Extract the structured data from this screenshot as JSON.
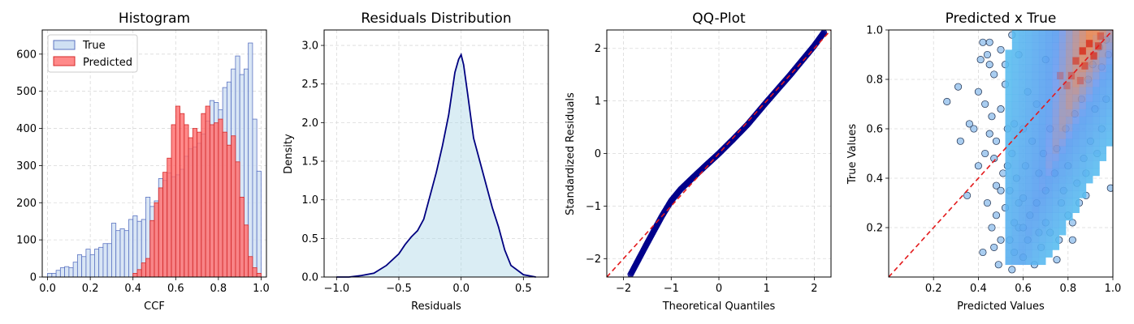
{
  "colors": {
    "true_fill": "#cfe0f3",
    "true_edge": "#5b73c2",
    "pred_fill": "#ff6b6b",
    "pred_edge": "#d42a2a",
    "kde_line": "#000080",
    "kde_fill": "#add8e6",
    "qq_points": "#00008b",
    "ref_line": "#e31a1c",
    "scatter_fill": "#a9cdf0",
    "scatter_edge": "#1a2b4a"
  },
  "chart_data": [
    {
      "type": "bar",
      "title": "Histogram",
      "xlabel": "CCF",
      "ylabel": "",
      "xlim": [
        -0.025,
        1.025
      ],
      "ylim": [
        0,
        665
      ],
      "xticks": [
        "0.0",
        "0.2",
        "0.4",
        "0.6",
        "0.8",
        "1.0"
      ],
      "yticks": [
        "0",
        "100",
        "200",
        "300",
        "400",
        "500",
        "600"
      ],
      "grid": true,
      "legend": "top-left",
      "bin_width": 0.02,
      "series": [
        {
          "name": "True",
          "bins_start": [
            0.0,
            0.02,
            0.04,
            0.06,
            0.08,
            0.1,
            0.12,
            0.14,
            0.16,
            0.18,
            0.2,
            0.22,
            0.24,
            0.26,
            0.28,
            0.3,
            0.32,
            0.34,
            0.36,
            0.38,
            0.4,
            0.42,
            0.44,
            0.46,
            0.48,
            0.5,
            0.52,
            0.54,
            0.56,
            0.58,
            0.6,
            0.62,
            0.64,
            0.66,
            0.68,
            0.7,
            0.72,
            0.74,
            0.76,
            0.78,
            0.8,
            0.82,
            0.84,
            0.86,
            0.88,
            0.9,
            0.92,
            0.94,
            0.96,
            0.98
          ],
          "values": [
            10,
            10,
            18,
            25,
            28,
            25,
            40,
            60,
            55,
            75,
            60,
            75,
            80,
            90,
            90,
            145,
            125,
            130,
            125,
            155,
            165,
            150,
            155,
            215,
            190,
            205,
            265,
            260,
            280,
            270,
            275,
            290,
            325,
            345,
            350,
            360,
            385,
            420,
            475,
            470,
            450,
            510,
            525,
            560,
            595,
            545,
            560,
            630,
            425,
            285
          ]
        },
        {
          "name": "Predicted",
          "bins_start": [
            0.4,
            0.42,
            0.44,
            0.46,
            0.48,
            0.5,
            0.52,
            0.54,
            0.56,
            0.58,
            0.6,
            0.62,
            0.64,
            0.66,
            0.68,
            0.7,
            0.72,
            0.74,
            0.76,
            0.78,
            0.8,
            0.82,
            0.84,
            0.86,
            0.88,
            0.9,
            0.92,
            0.94,
            0.96,
            0.98
          ],
          "values": [
            10,
            20,
            38,
            50,
            152,
            200,
            240,
            282,
            320,
            410,
            460,
            440,
            410,
            375,
            400,
            390,
            440,
            460,
            410,
            415,
            425,
            390,
            355,
            380,
            310,
            215,
            140,
            55,
            25,
            10
          ]
        }
      ]
    },
    {
      "type": "area",
      "title": "Residuals Distribution",
      "xlabel": "Residuals",
      "ylabel": "Density",
      "xlim": [
        -1.1,
        0.7
      ],
      "ylim": [
        0,
        3.2
      ],
      "xticks": [
        "−1.0",
        "−0.5",
        "0.0",
        "0.5"
      ],
      "yticks": [
        "0.0",
        "0.5",
        "1.0",
        "1.5",
        "2.0",
        "2.5",
        "3.0"
      ],
      "grid": true,
      "x": [
        -1.0,
        -0.9,
        -0.8,
        -0.7,
        -0.6,
        -0.5,
        -0.45,
        -0.4,
        -0.35,
        -0.3,
        -0.25,
        -0.2,
        -0.15,
        -0.1,
        -0.05,
        -0.02,
        0.0,
        0.02,
        0.05,
        0.1,
        0.15,
        0.2,
        0.25,
        0.3,
        0.35,
        0.4,
        0.5,
        0.6
      ],
      "values": [
        0.0,
        0.0,
        0.02,
        0.05,
        0.15,
        0.3,
        0.42,
        0.52,
        0.6,
        0.75,
        1.05,
        1.35,
        1.7,
        2.1,
        2.65,
        2.82,
        2.88,
        2.75,
        2.4,
        1.8,
        1.5,
        1.2,
        0.9,
        0.65,
        0.35,
        0.15,
        0.03,
        0.0
      ]
    },
    {
      "type": "scatter",
      "title": "QQ-Plot",
      "xlabel": "Theoretical Quantiles",
      "ylabel": "Standardized Residuals",
      "xlim": [
        -2.35,
        2.35
      ],
      "ylim": [
        -2.35,
        2.35
      ],
      "xticks": [
        "−2",
        "−1",
        "0",
        "1",
        "2"
      ],
      "yticks": [
        "−2",
        "−1",
        "0",
        "1",
        "2"
      ],
      "grid": true,
      "curve": {
        "x": [
          -1.85,
          -1.5,
          -1.2,
          -1.0,
          -0.8,
          -0.5,
          -0.3,
          0.0,
          0.3,
          0.6,
          1.0,
          1.5,
          2.0,
          2.2
        ],
        "y": [
          -2.3,
          -1.7,
          -1.2,
          -0.9,
          -0.68,
          -0.42,
          -0.25,
          0.0,
          0.27,
          0.55,
          0.98,
          1.5,
          2.05,
          2.3
        ]
      },
      "reference_line": {
        "x": [
          -2.35,
          2.35
        ],
        "y": [
          -2.35,
          2.35
        ]
      }
    },
    {
      "type": "scatter",
      "title": "Predicted x True",
      "xlabel": "Predicted Values",
      "ylabel": "True Values",
      "xlim": [
        0.0,
        1.0
      ],
      "ylim": [
        0.0,
        1.0
      ],
      "xticks": [
        "0.2",
        "0.4",
        "0.6",
        "0.8",
        "1.0"
      ],
      "yticks": [
        "0.2",
        "0.4",
        "0.6",
        "0.8",
        "1.0"
      ],
      "grid": true,
      "reference_line": {
        "x": [
          0.0,
          1.0
        ],
        "y": [
          0.0,
          1.0
        ]
      },
      "points": [
        [
          0.26,
          0.71
        ],
        [
          0.31,
          0.77
        ],
        [
          0.32,
          0.55
        ],
        [
          0.36,
          0.62
        ],
        [
          0.38,
          0.6
        ],
        [
          0.35,
          0.33
        ],
        [
          0.4,
          0.75
        ],
        [
          0.41,
          0.88
        ],
        [
          0.42,
          0.95
        ],
        [
          0.4,
          0.45
        ],
        [
          0.43,
          0.5
        ],
        [
          0.44,
          0.9
        ],
        [
          0.45,
          0.86
        ],
        [
          0.47,
          0.82
        ],
        [
          0.45,
          0.58
        ],
        [
          0.44,
          0.3
        ],
        [
          0.46,
          0.2
        ],
        [
          0.42,
          0.1
        ],
        [
          0.48,
          0.25
        ],
        [
          0.47,
          0.12
        ],
        [
          0.49,
          0.05
        ],
        [
          0.5,
          0.68
        ],
        [
          0.51,
          0.42
        ],
        [
          0.52,
          0.78
        ],
        [
          0.46,
          0.65
        ],
        [
          0.48,
          0.37
        ],
        [
          0.5,
          0.15
        ],
        [
          0.52,
          0.28
        ],
        [
          0.5,
          0.92
        ],
        [
          0.53,
          0.6
        ],
        [
          0.55,
          0.03
        ],
        [
          0.56,
          0.1
        ],
        [
          0.58,
          0.2
        ],
        [
          0.6,
          0.08
        ],
        [
          0.62,
          0.15
        ],
        [
          0.65,
          0.05
        ],
        [
          0.68,
          0.12
        ],
        [
          0.7,
          0.22
        ],
        [
          0.72,
          0.18
        ],
        [
          0.75,
          0.07
        ],
        [
          0.77,
          0.3
        ],
        [
          0.8,
          0.25
        ],
        [
          0.82,
          0.15
        ],
        [
          0.85,
          0.3
        ],
        [
          0.88,
          0.42
        ],
        [
          0.9,
          0.55
        ],
        [
          0.93,
          0.5
        ],
        [
          0.95,
          0.6
        ],
        [
          0.97,
          0.72
        ],
        [
          0.95,
          0.85
        ],
        [
          0.98,
          0.9
        ],
        [
          0.92,
          0.68
        ],
        [
          0.87,
          0.48
        ],
        [
          0.84,
          0.38
        ],
        [
          0.8,
          0.45
        ],
        [
          0.78,
          0.35
        ],
        [
          0.74,
          0.42
        ],
        [
          0.7,
          0.35
        ],
        [
          0.66,
          0.3
        ],
        [
          0.63,
          0.25
        ],
        [
          0.6,
          0.32
        ],
        [
          0.57,
          0.4
        ],
        [
          0.55,
          0.5
        ],
        [
          0.53,
          0.45
        ],
        [
          0.54,
          0.35
        ],
        [
          0.56,
          0.22
        ],
        [
          0.58,
          0.3
        ],
        [
          0.61,
          0.45
        ],
        [
          0.64,
          0.55
        ],
        [
          0.67,
          0.42
        ],
        [
          0.69,
          0.5
        ],
        [
          0.72,
          0.6
        ],
        [
          0.75,
          0.52
        ],
        [
          0.79,
          0.6
        ],
        [
          0.83,
          0.66
        ],
        [
          0.86,
          0.72
        ],
        [
          0.89,
          0.8
        ],
        [
          0.91,
          0.86
        ],
        [
          0.94,
          0.93
        ],
        [
          0.97,
          0.96
        ],
        [
          0.99,
          0.36
        ],
        [
          0.82,
          0.22
        ],
        [
          0.88,
          0.33
        ],
        [
          0.76,
          0.15
        ],
        [
          0.67,
          0.18
        ],
        [
          0.6,
          0.2
        ],
        [
          0.54,
          0.15
        ],
        [
          0.5,
          0.35
        ],
        [
          0.47,
          0.48
        ],
        [
          0.43,
          0.7
        ],
        [
          0.45,
          0.95
        ],
        [
          0.55,
          0.98
        ],
        [
          0.58,
          0.9
        ],
        [
          0.52,
          0.86
        ],
        [
          0.62,
          0.75
        ],
        [
          0.66,
          0.7
        ],
        [
          0.7,
          0.88
        ],
        [
          0.48,
          0.55
        ],
        [
          0.56,
          0.62
        ],
        [
          0.6,
          0.6
        ]
      ],
      "density_cells": [
        [
          0.85,
          0.9,
          1.0
        ],
        [
          0.88,
          0.93,
          0.95
        ],
        [
          0.9,
          0.88,
          0.9
        ],
        [
          0.82,
          0.86,
          0.75
        ],
        [
          0.86,
          0.84,
          0.7
        ],
        [
          0.92,
          0.92,
          0.8
        ],
        [
          0.8,
          0.8,
          0.5
        ],
        [
          0.78,
          0.76,
          0.4
        ],
        [
          0.75,
          0.8,
          0.35
        ],
        [
          0.84,
          0.78,
          0.45
        ],
        [
          0.93,
          0.96,
          0.55
        ]
      ]
    }
  ]
}
